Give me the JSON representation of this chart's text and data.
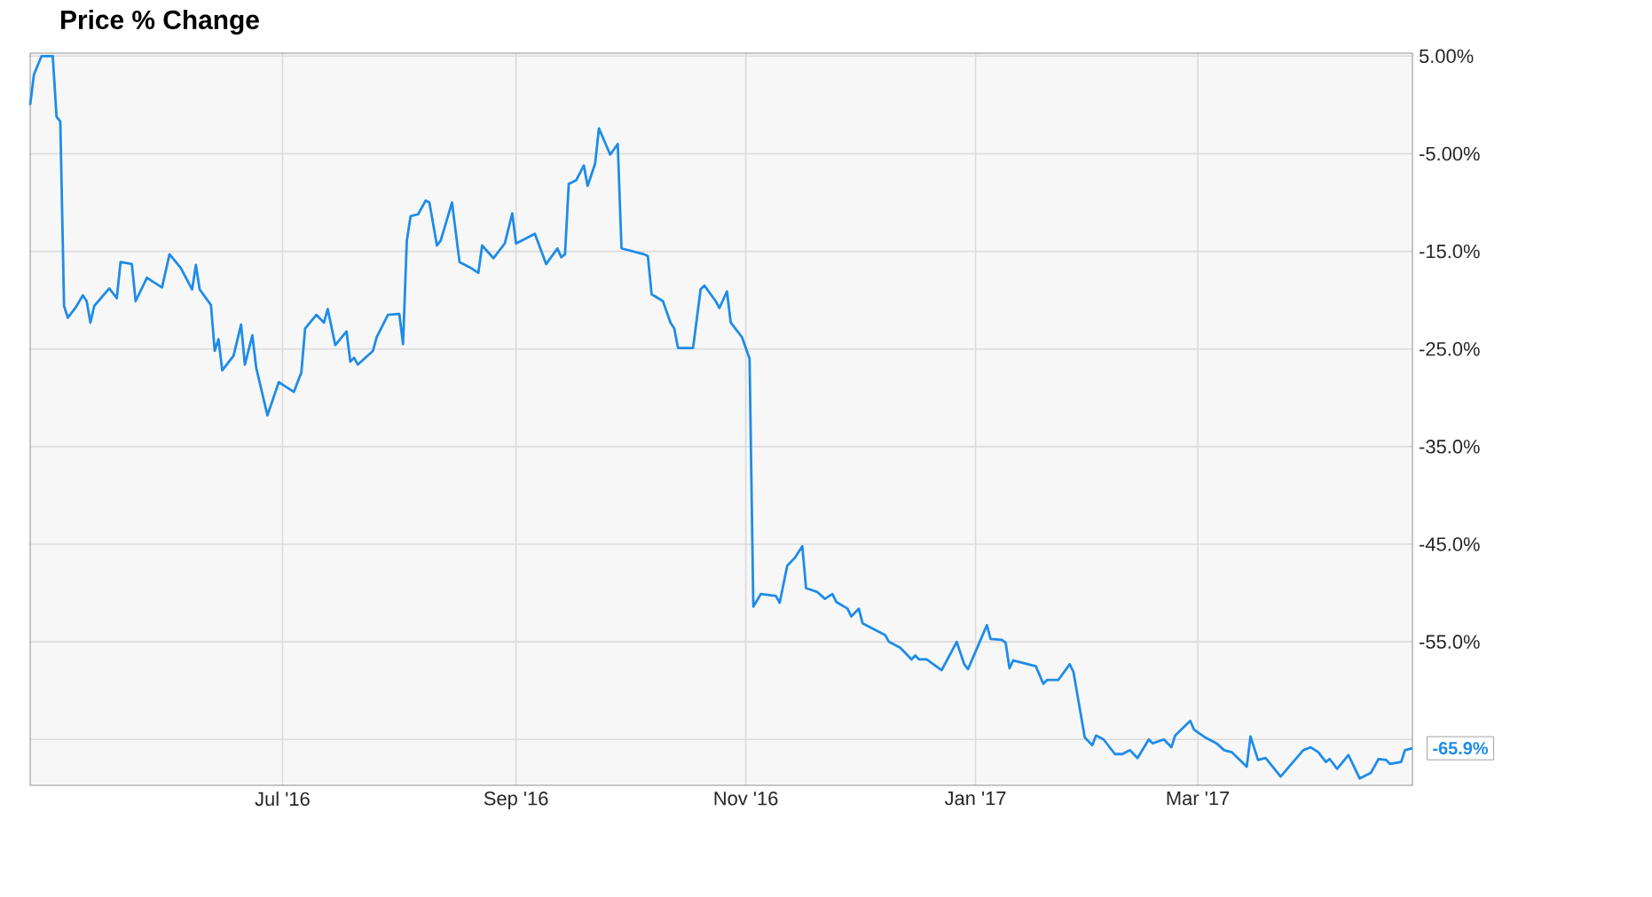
{
  "chart_data": {
    "type": "line",
    "title": "Price % Change",
    "x": [
      "2016-04-25",
      "2016-04-26",
      "2016-04-28",
      "2016-05-01",
      "2016-05-02",
      "2016-05-03",
      "2016-05-04",
      "2016-05-05",
      "2016-05-07",
      "2016-05-09",
      "2016-05-10",
      "2016-05-11",
      "2016-05-12",
      "2016-05-16",
      "2016-05-18",
      "2016-05-19",
      "2016-05-22",
      "2016-05-23",
      "2016-05-26",
      "2016-05-30",
      "2016-06-01",
      "2016-06-04",
      "2016-06-07",
      "2016-06-08",
      "2016-06-09",
      "2016-06-12",
      "2016-06-13",
      "2016-06-14",
      "2016-06-15",
      "2016-06-18",
      "2016-06-20",
      "2016-06-21",
      "2016-06-23",
      "2016-06-24",
      "2016-06-27",
      "2016-06-30",
      "2016-07-04",
      "2016-07-06",
      "2016-07-07",
      "2016-07-10",
      "2016-07-12",
      "2016-07-13",
      "2016-07-15",
      "2016-07-18",
      "2016-07-19",
      "2016-07-20",
      "2016-07-21",
      "2016-07-25",
      "2016-07-26",
      "2016-07-29",
      "2016-08-01",
      "2016-08-02",
      "2016-08-03",
      "2016-08-04",
      "2016-08-06",
      "2016-08-08",
      "2016-08-09",
      "2016-08-11",
      "2016-08-12",
      "2016-08-15",
      "2016-08-17",
      "2016-08-20",
      "2016-08-22",
      "2016-08-23",
      "2016-08-26",
      "2016-08-29",
      "2016-08-31",
      "2016-09-01",
      "2016-09-06",
      "2016-09-09",
      "2016-09-12",
      "2016-09-13",
      "2016-09-14",
      "2016-09-15",
      "2016-09-17",
      "2016-09-19",
      "2016-09-20",
      "2016-09-22",
      "2016-09-23",
      "2016-09-26",
      "2016-09-28",
      "2016-09-29",
      "2016-10-05",
      "2016-10-06",
      "2016-10-07",
      "2016-10-10",
      "2016-10-12",
      "2016-10-13",
      "2016-10-14",
      "2016-10-18",
      "2016-10-20",
      "2016-10-21",
      "2016-10-24",
      "2016-10-25",
      "2016-10-27",
      "2016-10-28",
      "2016-10-31",
      "2016-11-02",
      "2016-11-03",
      "2016-11-05",
      "2016-11-09",
      "2016-11-10",
      "2016-11-12",
      "2016-11-14",
      "2016-11-16",
      "2016-11-17",
      "2016-11-20",
      "2016-11-22",
      "2016-11-24",
      "2016-11-25",
      "2016-11-28",
      "2016-11-29",
      "2016-12-01",
      "2016-12-02",
      "2016-12-08",
      "2016-12-09",
      "2016-12-12",
      "2016-12-15",
      "2016-12-16",
      "2016-12-17",
      "2016-12-19",
      "2016-12-23",
      "2016-12-27",
      "2016-12-29",
      "2016-12-30",
      "2017-01-04",
      "2017-01-05",
      "2017-01-08",
      "2017-01-09",
      "2017-01-10",
      "2017-01-11",
      "2017-01-17",
      "2017-01-19",
      "2017-01-20",
      "2017-01-23",
      "2017-01-26",
      "2017-01-27",
      "2017-01-30",
      "2017-02-01",
      "2017-02-02",
      "2017-02-04",
      "2017-02-07",
      "2017-02-09",
      "2017-02-11",
      "2017-02-13",
      "2017-02-16",
      "2017-02-17",
      "2017-02-20",
      "2017-02-22",
      "2017-02-23",
      "2017-02-27",
      "2017-02-28",
      "2017-03-03",
      "2017-03-06",
      "2017-03-08",
      "2017-03-10",
      "2017-03-14",
      "2017-03-15",
      "2017-03-17",
      "2017-03-19",
      "2017-03-23",
      "2017-03-29",
      "2017-03-31",
      "2017-04-02",
      "2017-04-04",
      "2017-04-05",
      "2017-04-07",
      "2017-04-10",
      "2017-04-13",
      "2017-04-16",
      "2017-04-18",
      "2017-04-20",
      "2017-04-21",
      "2017-04-24",
      "2017-04-25",
      "2017-04-27"
    ],
    "values": [
      0.0,
      3.1,
      5.0,
      5.0,
      -1.2,
      -1.7,
      -20.6,
      -21.8,
      -20.8,
      -19.5,
      -20.1,
      -22.3,
      -20.6,
      -18.8,
      -19.8,
      -16.1,
      -16.3,
      -20.1,
      -17.7,
      -18.7,
      -15.3,
      -16.7,
      -18.9,
      -16.4,
      -18.9,
      -20.5,
      -25.2,
      -24.0,
      -27.2,
      -25.7,
      -22.5,
      -26.6,
      -23.6,
      -26.9,
      -31.8,
      -28.4,
      -29.4,
      -27.4,
      -22.9,
      -21.5,
      -22.3,
      -20.9,
      -24.6,
      -23.2,
      -26.3,
      -25.9,
      -26.6,
      -25.2,
      -23.8,
      -21.5,
      -21.4,
      -24.5,
      -13.9,
      -11.4,
      -11.2,
      -9.8,
      -10.0,
      -14.4,
      -13.9,
      -10.0,
      -16.1,
      -16.7,
      -17.2,
      -14.4,
      -15.7,
      -14.2,
      -11.1,
      -14.2,
      -13.2,
      -16.3,
      -14.7,
      -15.6,
      -15.3,
      -8.1,
      -7.7,
      -6.2,
      -8.3,
      -6.0,
      -2.4,
      -5.1,
      -4.0,
      -14.7,
      -15.3,
      -15.5,
      -19.4,
      -20.1,
      -22.3,
      -22.9,
      -24.9,
      -24.9,
      -18.9,
      -18.5,
      -20.1,
      -20.8,
      -19.1,
      -22.3,
      -23.8,
      -26.0,
      -51.4,
      -50.1,
      -50.3,
      -51.0,
      -47.2,
      -46.4,
      -45.2,
      -49.5,
      -49.9,
      -50.6,
      -50.1,
      -50.9,
      -51.6,
      -52.4,
      -51.6,
      -53.1,
      -54.3,
      -55.0,
      -55.6,
      -56.8,
      -56.4,
      -56.8,
      -56.8,
      -57.9,
      -55.0,
      -57.3,
      -57.8,
      -53.3,
      -54.7,
      -54.8,
      -55.1,
      -57.7,
      -56.9,
      -57.5,
      -59.3,
      -58.9,
      -58.9,
      -57.3,
      -58.1,
      -64.8,
      -65.6,
      -64.6,
      -65.0,
      -66.5,
      -66.5,
      -66.1,
      -66.9,
      -65.0,
      -65.4,
      -65.0,
      -65.8,
      -64.6,
      -63.1,
      -64.0,
      -64.8,
      -65.4,
      -66.1,
      -66.3,
      -67.8,
      -64.7,
      -67.1,
      -66.9,
      -68.8,
      -66.1,
      -65.8,
      -66.3,
      -67.3,
      -67.0,
      -68.0,
      -66.6,
      -69.0,
      -68.4,
      -67.0,
      -67.1,
      -67.5,
      -67.3,
      -66.1,
      -65.9
    ],
    "color": "#1e8ce8",
    "xlim": [
      "2016-04-25",
      "2017-04-27"
    ],
    "xticks": [
      {
        "value": "2016-07-01",
        "label": "Jul '16"
      },
      {
        "value": "2016-09-01",
        "label": "Sep '16"
      },
      {
        "value": "2016-11-01",
        "label": "Nov '16"
      },
      {
        "value": "2017-01-01",
        "label": "Jan '17"
      },
      {
        "value": "2017-03-01",
        "label": "Mar '17"
      }
    ],
    "ylim": [
      -69.7,
      5.3
    ],
    "yticks": [
      {
        "value": 5,
        "label": "5.00%"
      },
      {
        "value": -5,
        "label": "-5.00%"
      },
      {
        "value": -15,
        "label": "-15.0%"
      },
      {
        "value": -25,
        "label": "-25.0%"
      },
      {
        "value": -35,
        "label": "-35.0%"
      },
      {
        "value": -45,
        "label": "-45.0%"
      },
      {
        "value": -55,
        "label": "-55.0%"
      },
      {
        "value": -65,
        "label": null
      }
    ],
    "grid": true,
    "annotations": [
      {
        "text": "-65.9%",
        "x": "2017-04-27",
        "y": -65.9
      }
    ]
  }
}
